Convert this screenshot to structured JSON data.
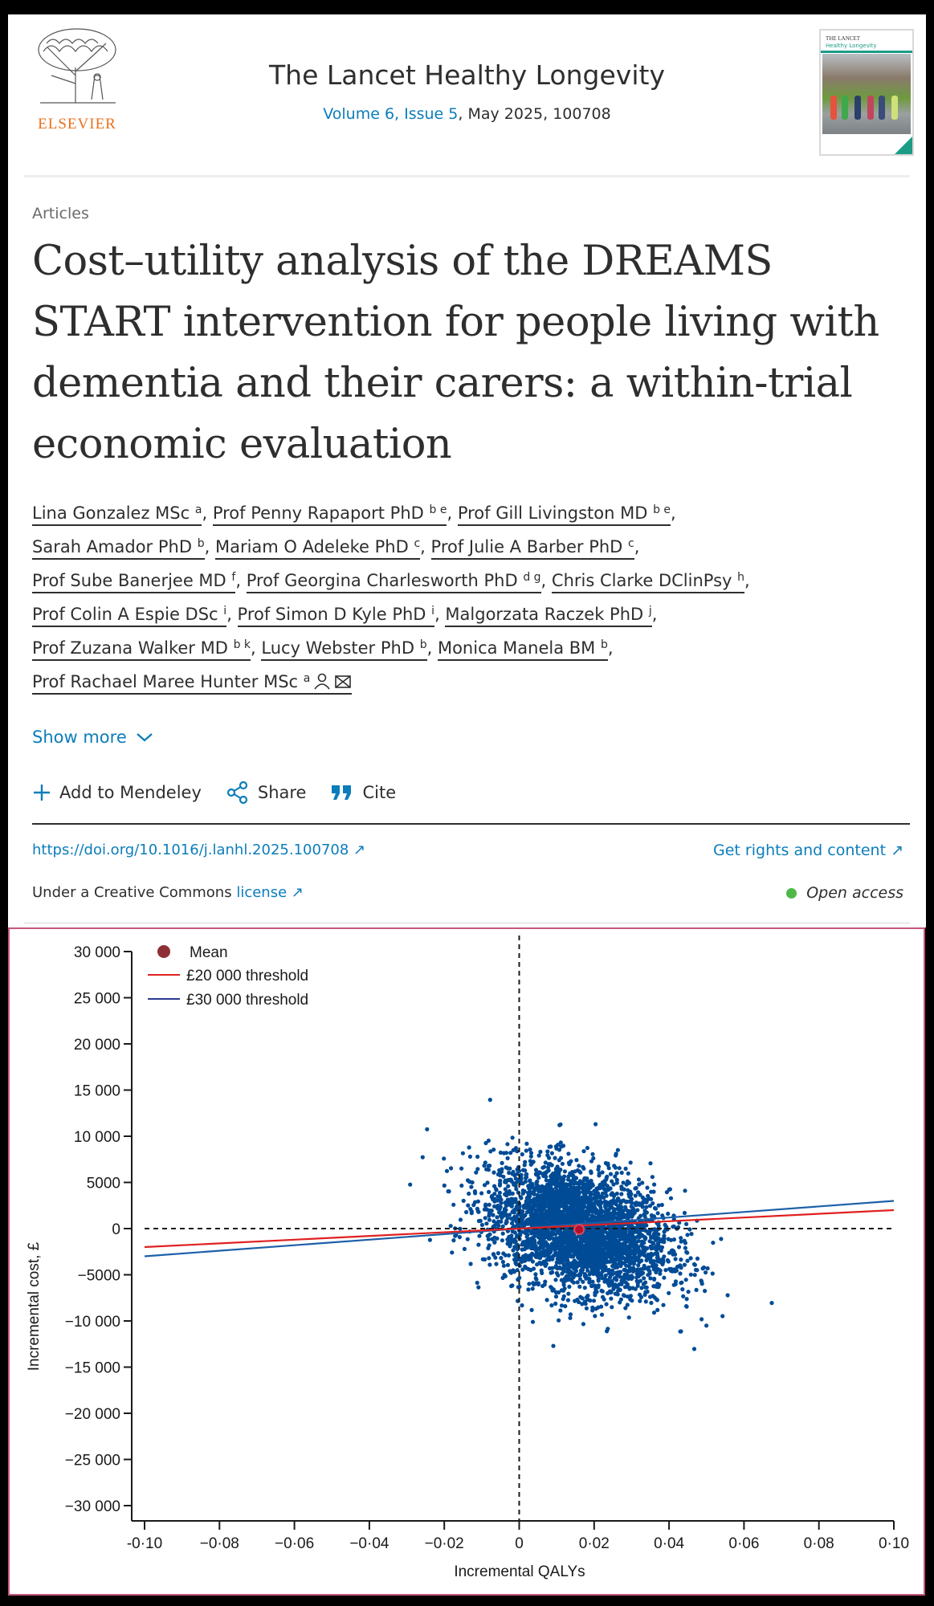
{
  "header": {
    "publisher_logo_text": "ELSEVIER",
    "journal_title": "The Lancet Healthy Longevity",
    "volume_issue_link": "Volume 6, Issue 5",
    "issue_rest": ", May 2025, 100708",
    "cover_line1": "THE LANCET",
    "cover_line2": "Healthy Longevity"
  },
  "article": {
    "section": "Articles",
    "title": "Cost–utility analysis of the DREAMS START intervention for people living with dementia and their carers: a within-trial economic evaluation",
    "authors": [
      {
        "name": "Lina Gonzalez MSc",
        "aff": "a",
        "sep": ", "
      },
      {
        "name": "Prof Penny Rapaport PhD",
        "aff": "b e",
        "sep": ", "
      },
      {
        "name": "Prof Gill Livingston MD",
        "aff": "b e",
        "sep": ","
      },
      {
        "name": "Sarah Amador PhD",
        "aff": "b",
        "sep": ", "
      },
      {
        "name": "Mariam O Adeleke PhD",
        "aff": "c",
        "sep": ", "
      },
      {
        "name": "Prof Julie A Barber PhD",
        "aff": "c",
        "sep": ","
      },
      {
        "name": "Prof Sube Banerjee MD",
        "aff": "f",
        "sep": ", "
      },
      {
        "name": "Prof Georgina Charlesworth PhD",
        "aff": "d g",
        "sep": ", "
      },
      {
        "name": "Chris Clarke DClinPsy",
        "aff": "h",
        "sep": ","
      },
      {
        "name": "Prof Colin A Espie DSc",
        "aff": "i",
        "sep": ", "
      },
      {
        "name": "Prof Simon D Kyle PhD",
        "aff": "i",
        "sep": ", "
      },
      {
        "name": "Malgorzata Raczek PhD",
        "aff": "j",
        "sep": ","
      },
      {
        "name": "Prof Zuzana Walker MD",
        "aff": "b k",
        "sep": ", "
      },
      {
        "name": "Lucy Webster PhD",
        "aff": "b",
        "sep": ", "
      },
      {
        "name": "Monica Manela BM",
        "aff": "b",
        "sep": ","
      },
      {
        "name": "Prof Rachael Maree Hunter MSc",
        "aff": "a",
        "sep": ""
      }
    ],
    "show_more": "Show more",
    "actions": {
      "mendeley": "Add to Mendeley",
      "share": "Share",
      "cite": "Cite"
    },
    "doi": "https://doi.org/10.1016/j.lanhl.2025.100708",
    "rights": "Get rights and content",
    "license_prefix": "Under a Creative Commons ",
    "license_link": "license",
    "open_access": "Open access"
  },
  "colors": {
    "link": "#0c7dbb",
    "scatter": "#004b96",
    "mean": "#b0102c",
    "line20k": "#e02020",
    "line30k": "#1d5fa8",
    "open_access": "#4fb848"
  },
  "chart_data": {
    "type": "scatter",
    "title": "",
    "xlabel": "Incremental QALYs",
    "ylabel": "Incremental cost, £",
    "xlim": [
      -0.1,
      0.1
    ],
    "ylim": [
      -30000,
      30000
    ],
    "x_ticks": [
      "-0·10",
      "−0·08",
      "−0·06",
      "−0·04",
      "−0·02",
      "0",
      "0·02",
      "0·04",
      "0·06",
      "0·08",
      "0·10"
    ],
    "x_tick_values": [
      -0.1,
      -0.08,
      -0.06,
      -0.04,
      -0.02,
      0,
      0.02,
      0.04,
      0.06,
      0.08,
      0.1
    ],
    "y_ticks": [
      "30 000",
      "25 000",
      "20 000",
      "15 000",
      "10 000",
      "5000",
      "0",
      "−5000",
      "−10 000",
      "−15 000",
      "−20 000",
      "−25 000",
      "−30 000"
    ],
    "y_tick_values": [
      30000,
      25000,
      20000,
      15000,
      10000,
      5000,
      0,
      -5000,
      -10000,
      -15000,
      -20000,
      -25000,
      -30000
    ],
    "legend": {
      "position": "top-left",
      "entries": [
        "Mean",
        "£20 000 threshold",
        "£30 000 threshold"
      ]
    },
    "mean_point": {
      "x": 0.016,
      "y": -100
    },
    "cloud": {
      "x_mean": 0.016,
      "x_sd": 0.012,
      "y_mean": -100,
      "y_sd": 3300,
      "approx_points": 10000
    },
    "threshold_lines": [
      {
        "name": "£20 000 threshold",
        "slope": 20000,
        "x_range": [
          -0.1,
          0.1
        ]
      },
      {
        "name": "£30 000 threshold",
        "slope": 30000,
        "x_range": [
          -0.1,
          0.1
        ]
      }
    ],
    "reference_lines": {
      "x": 0,
      "y": 0
    }
  }
}
